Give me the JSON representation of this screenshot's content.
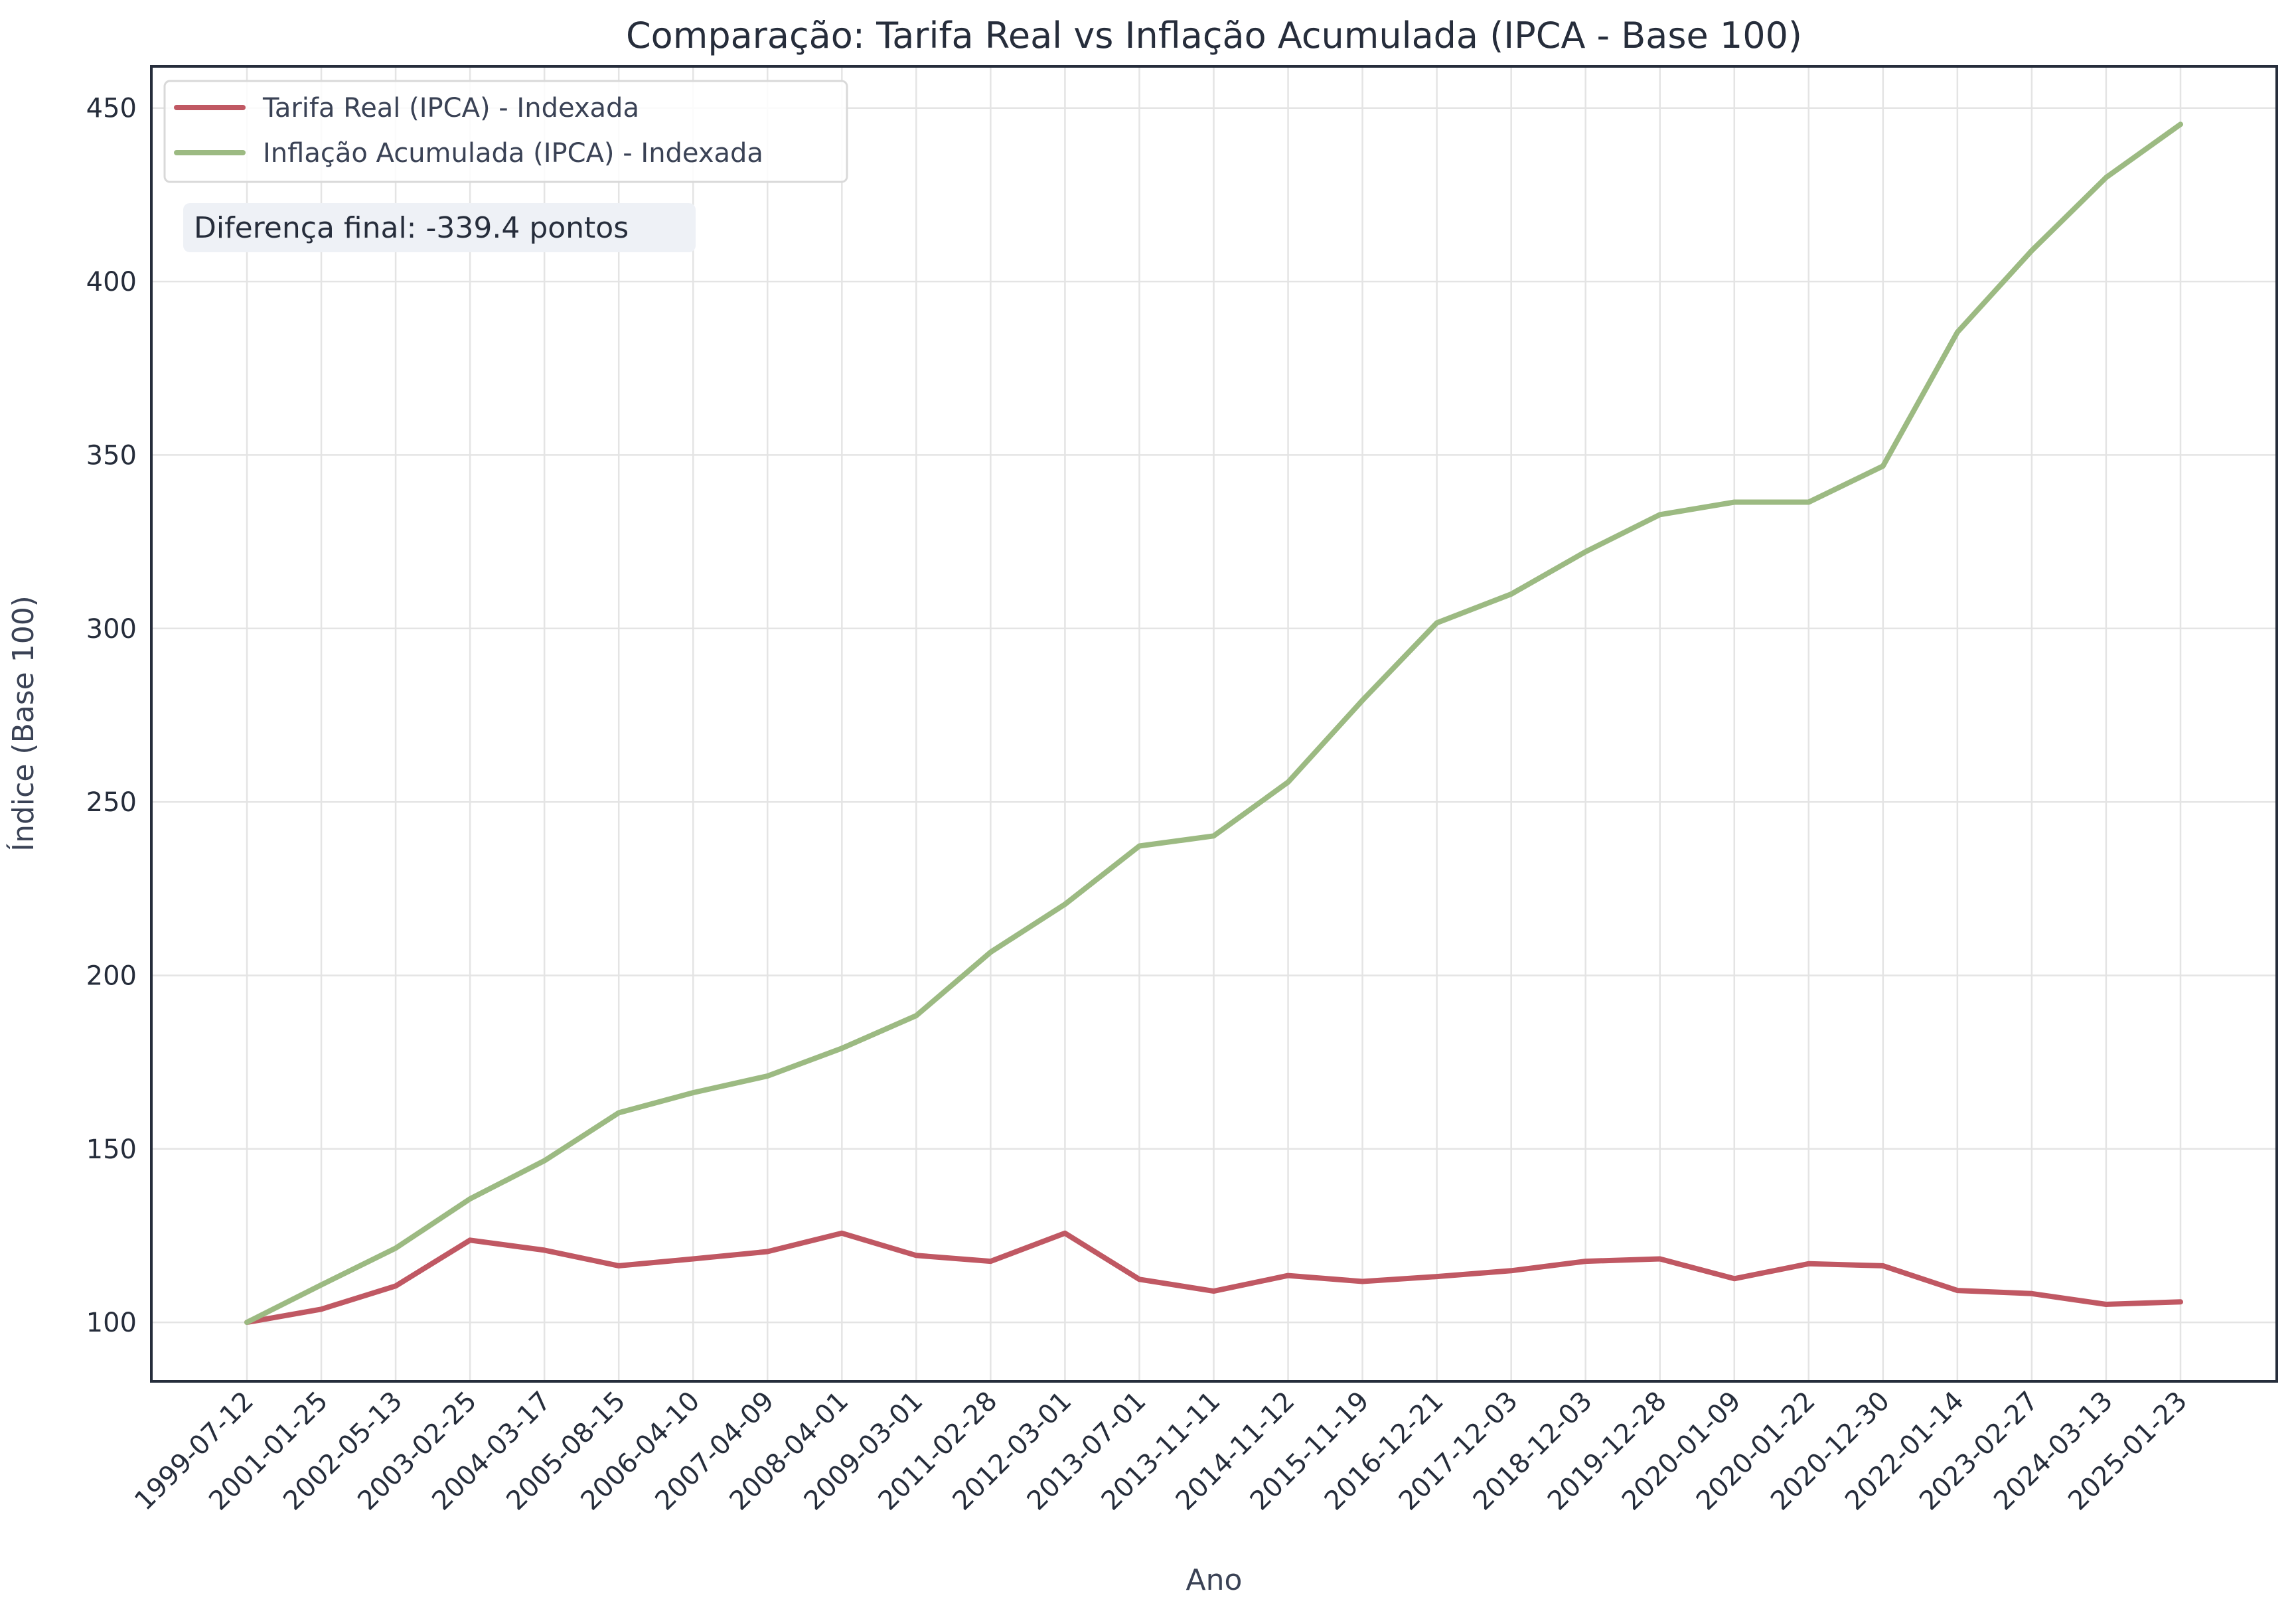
{
  "chart_data": {
    "type": "line",
    "title": "Comparação: Tarifa Real vs Inflação Acumulada (IPCA - Base 100)",
    "xlabel": "Ano",
    "ylabel": "Índice (Base 100)",
    "categories": [
      "1999-07-12",
      "2001-01-25",
      "2002-05-13",
      "2003-02-25",
      "2004-03-17",
      "2005-08-15",
      "2006-04-10",
      "2007-04-09",
      "2008-04-01",
      "2009-03-01",
      "2011-02-28",
      "2012-03-01",
      "2013-07-01",
      "2013-11-11",
      "2014-11-12",
      "2015-11-19",
      "2016-12-21",
      "2017-12-03",
      "2018-12-03",
      "2019-12-28",
      "2020-01-09",
      "2020-01-22",
      "2020-12-30",
      "2022-01-14",
      "2023-02-27",
      "2024-03-13",
      "2025-01-23"
    ],
    "series": [
      {
        "name": "Tarifa Real (IPCA) - Indexada",
        "color": "#c05863",
        "values": [
          100,
          103.8,
          110.5,
          123.7,
          120.8,
          116.3,
          118.3,
          120.4,
          125.7,
          119.3,
          117.6,
          125.7,
          112.4,
          109.0,
          113.5,
          111.8,
          113.2,
          114.9,
          117.6,
          118.3,
          112.6,
          116.9,
          116.3,
          109.2,
          108.3,
          105.2,
          105.9
        ]
      },
      {
        "name": "Inflação Acumulada (IPCA) - Indexada",
        "color": "#9cba82",
        "values": [
          100,
          110.8,
          121.4,
          135.6,
          146.6,
          160.4,
          166.2,
          171.0,
          179.0,
          188.4,
          206.7,
          220.5,
          237.3,
          240.2,
          255.7,
          279.3,
          301.6,
          309.9,
          322.1,
          332.8,
          336.4,
          336.4,
          346.8,
          385.4,
          408.9,
          430.0,
          445.3
        ]
      }
    ],
    "ylim": [
      83,
      462
    ],
    "yticks": [
      100,
      150,
      200,
      250,
      300,
      350,
      400,
      450
    ],
    "grid": true,
    "legend_position": "top-left",
    "annotation": "Diferença final: -339.4 pontos"
  }
}
